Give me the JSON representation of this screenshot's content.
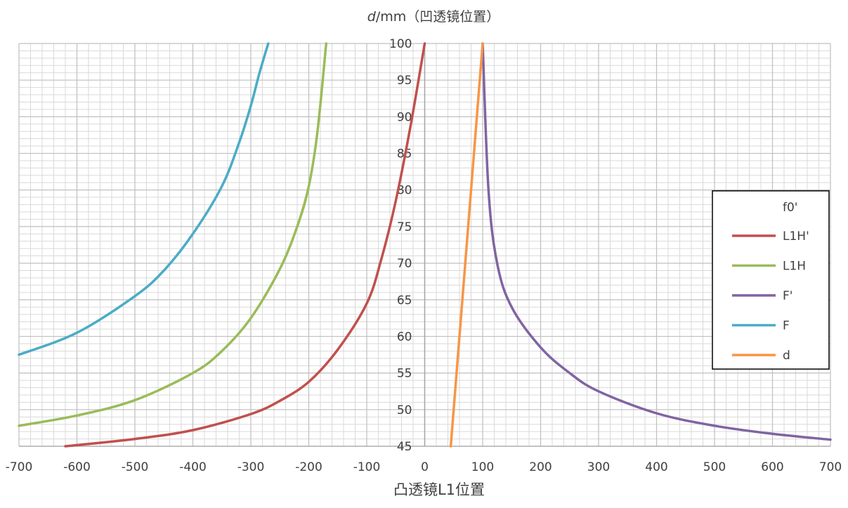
{
  "chart_data": {
    "type": "line",
    "title": "",
    "ylabel_italic": "d",
    "ylabel_rest": "/mm（凹透镜位置）",
    "xlabel": "凸透镜L1位置",
    "xlim": [
      -700,
      700
    ],
    "ylim": [
      45,
      100
    ],
    "x_ticks": [
      "-700",
      "-600",
      "-500",
      "-400",
      "-300",
      "-200",
      "-100",
      "0",
      "100",
      "200",
      "300",
      "400",
      "500",
      "600",
      "700"
    ],
    "y_ticks": [
      "45",
      "50",
      "55",
      "60",
      "65",
      "70",
      "75",
      "80",
      "85",
      "90",
      "95",
      "100"
    ],
    "grid": true,
    "legend_position": "right",
    "legend": {
      "header": "f0'",
      "items": [
        {
          "name": "L1H'",
          "color": "#c0504d"
        },
        {
          "name": "L1H",
          "color": "#9bbb59"
        },
        {
          "name": "F'",
          "color": "#8064a2"
        },
        {
          "name": "F",
          "color": "#4bacc6"
        },
        {
          "name": "d",
          "color": "#f79646"
        }
      ]
    },
    "series": [
      {
        "name": "L1H'",
        "color": "#c0504d",
        "points": [
          [
            -620,
            45
          ],
          [
            -500,
            46
          ],
          [
            -400,
            47.2
          ],
          [
            -300,
            49.4
          ],
          [
            -250,
            51.2
          ],
          [
            -200,
            53.8
          ],
          [
            -150,
            58.2
          ],
          [
            -100,
            64.5
          ],
          [
            -75,
            70.5
          ],
          [
            -50,
            78.5
          ],
          [
            -25,
            88.5
          ],
          [
            0,
            100
          ]
        ]
      },
      {
        "name": "L1H",
        "color": "#9bbb59",
        "points": [
          [
            -700,
            47.8
          ],
          [
            -600,
            49.2
          ],
          [
            -500,
            51.3
          ],
          [
            -400,
            55
          ],
          [
            -350,
            58
          ],
          [
            -300,
            62.5
          ],
          [
            -250,
            69.2
          ],
          [
            -220,
            75
          ],
          [
            -200,
            80.5
          ],
          [
            -185,
            88
          ],
          [
            -170,
            100
          ]
        ]
      },
      {
        "name": "F'",
        "color": "#8064a2",
        "points": [
          [
            100,
            100
          ],
          [
            110,
            80
          ],
          [
            125,
            70
          ],
          [
            150,
            64
          ],
          [
            200,
            58.5
          ],
          [
            250,
            55
          ],
          [
            300,
            52.5
          ],
          [
            400,
            49.5
          ],
          [
            500,
            47.8
          ],
          [
            600,
            46.7
          ],
          [
            700,
            45.9
          ]
        ]
      },
      {
        "name": "F",
        "color": "#4bacc6",
        "points": [
          [
            -700,
            57.5
          ],
          [
            -600,
            60.5
          ],
          [
            -500,
            65.5
          ],
          [
            -450,
            69
          ],
          [
            -400,
            74
          ],
          [
            -350,
            80.5
          ],
          [
            -320,
            86.5
          ],
          [
            -300,
            91.5
          ],
          [
            -285,
            96
          ],
          [
            -270,
            100
          ]
        ]
      },
      {
        "name": "d",
        "color": "#f79646",
        "points": [
          [
            45,
            45
          ],
          [
            100,
            100
          ]
        ]
      }
    ]
  }
}
